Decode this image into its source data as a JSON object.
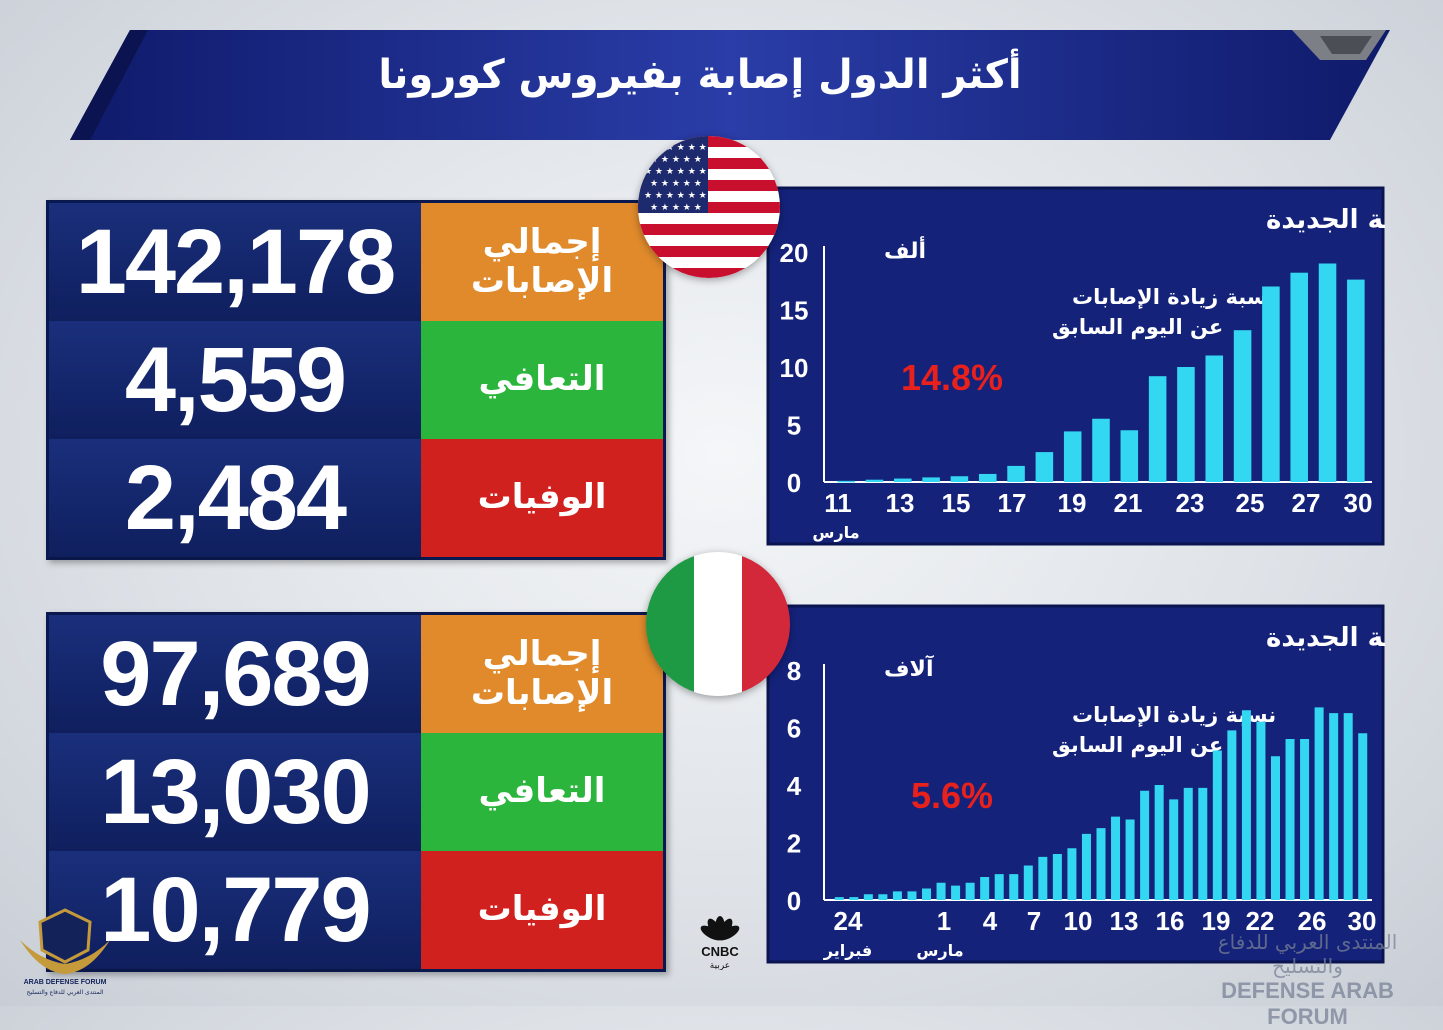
{
  "title": "أكثر الدول إصابة بفيروس كورونا",
  "countries": [
    {
      "flag": "usa-flag",
      "stats": [
        {
          "label_line1": "إجمالي",
          "label_line2": "الإصابات",
          "value": "142,178",
          "color": "#e08a2c"
        },
        {
          "label_line1": "التعافي",
          "label_line2": "",
          "value": "4,559",
          "color": "#2bb53c"
        },
        {
          "label_line1": "الوفيات",
          "label_line2": "",
          "value": "2,484",
          "color": "#d0211f"
        }
      ]
    },
    {
      "flag": "italy-flag",
      "stats": [
        {
          "label_line1": "إجمالي",
          "label_line2": "الإصابات",
          "value": "97,689",
          "color": "#e08a2c"
        },
        {
          "label_line1": "التعافي",
          "label_line2": "",
          "value": "13,030",
          "color": "#2bb53c"
        },
        {
          "label_line1": "الوفيات",
          "label_line2": "",
          "value": "10,779",
          "color": "#d0211f"
        }
      ]
    }
  ],
  "chart_data": [
    {
      "type": "bar",
      "title": "الحالات اليومية الجديدة",
      "unit": "ألف",
      "ylim": [
        0,
        20
      ],
      "yticks": [
        "0",
        "5",
        "10",
        "15",
        "20"
      ],
      "xtick_labels": [
        "11",
        "13",
        "15",
        "17",
        "19",
        "21",
        "23",
        "25",
        "27",
        "30"
      ],
      "xtick_sub": "مارس",
      "annotation_line1": "نسبة زيادة الإصابات",
      "annotation_line2": "عن اليوم السابق",
      "annotation_value": "14.8%",
      "bar_color": "#33d7f2",
      "values": [
        0.1,
        0.2,
        0.3,
        0.4,
        0.5,
        0.7,
        1.4,
        2.6,
        4.4,
        5.5,
        4.5,
        9.2,
        10,
        11,
        13.2,
        17,
        18.2,
        19,
        17.6
      ]
    },
    {
      "type": "bar",
      "title": "الحالات اليومية الجديدة",
      "unit": "آلاف",
      "ylim": [
        0,
        8
      ],
      "yticks": [
        "0",
        "2",
        "4",
        "6",
        "8"
      ],
      "xtick_labels": [
        "24",
        "1",
        "4",
        "7",
        "10",
        "13",
        "16",
        "19",
        "22",
        "26",
        "30"
      ],
      "xtick_sub_left": "فبراير",
      "xtick_sub_right": "مارس",
      "annotation_line1": "نسبة زيادة الإصابات",
      "annotation_line2": "عن اليوم السابق",
      "annotation_value": "5.6%",
      "bar_color": "#33d7f2",
      "values": [
        0.1,
        0.1,
        0.2,
        0.2,
        0.3,
        0.3,
        0.4,
        0.6,
        0.5,
        0.6,
        0.8,
        0.9,
        0.9,
        1.2,
        1.5,
        1.6,
        1.8,
        2.3,
        2.5,
        2.9,
        2.8,
        3.8,
        4.0,
        3.5,
        3.9,
        3.9,
        5.2,
        5.9,
        6.6,
        6.2,
        5.0,
        5.6,
        5.6,
        6.7,
        6.5,
        6.5,
        5.8
      ]
    }
  ],
  "brand": {
    "logo_text1": "CNBC",
    "logo_text2": "عربية",
    "watermark_left1": "ARAB DEFENSE FORUM",
    "watermark_left2": "المنتدى العربي للدفاع والتسليح",
    "watermark_right1": "المنتدى العربي للدفاع والتسليح",
    "watermark_right2": "DEFENSE ARAB FORUM"
  },
  "colors": {
    "navy": "#0d1e5c",
    "banner": "#1c2d86",
    "accent_red": "#e8211c"
  }
}
